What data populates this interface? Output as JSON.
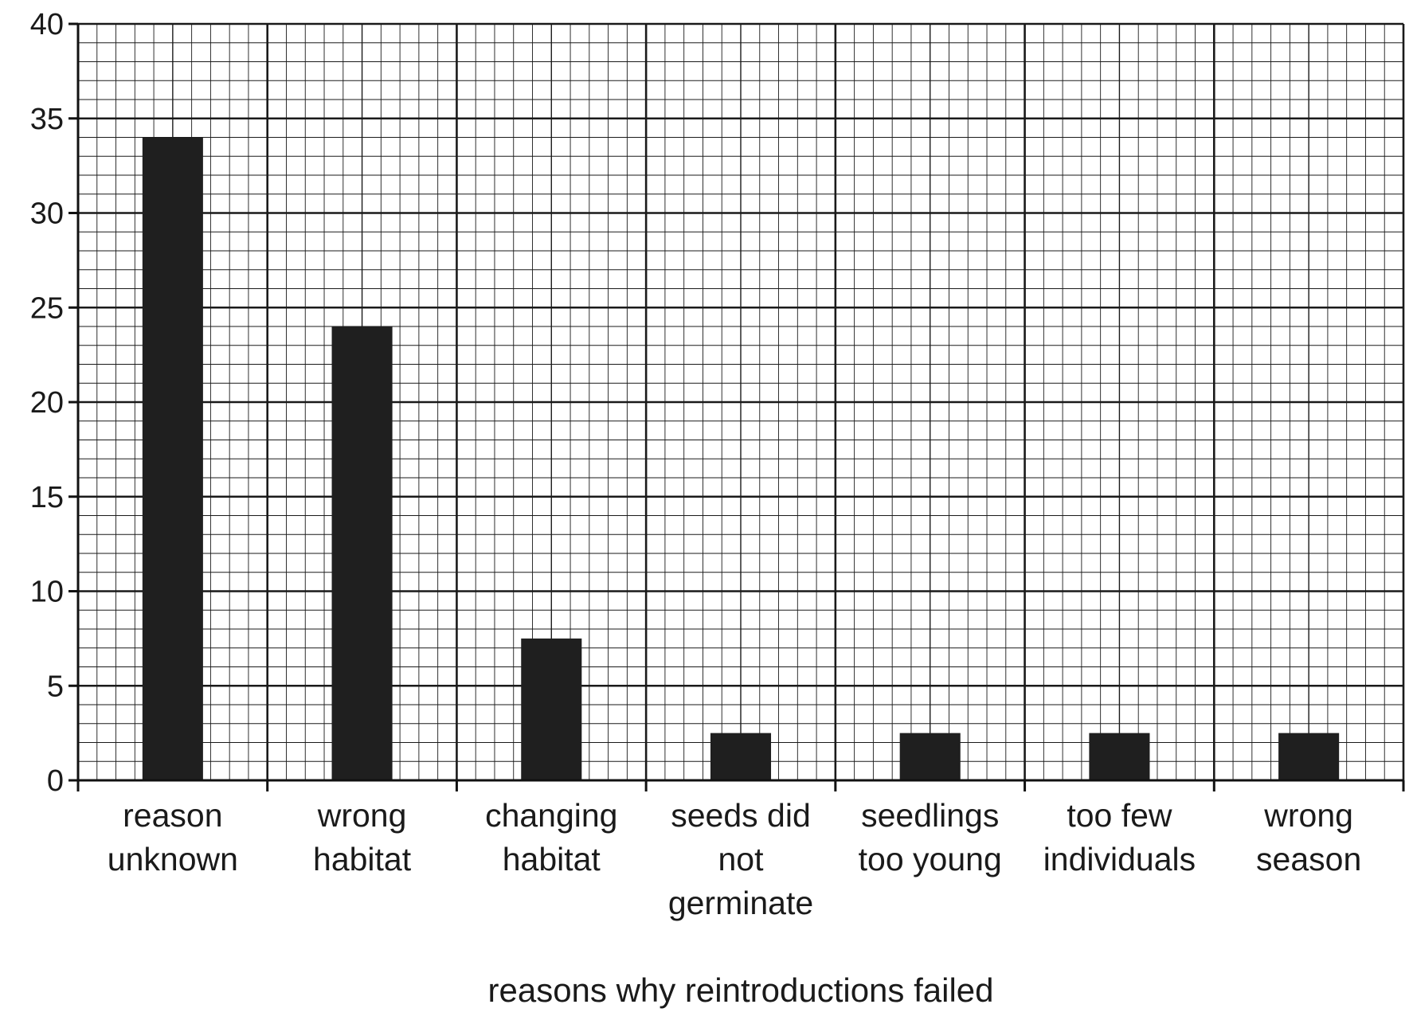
{
  "chart_data": {
    "type": "bar",
    "categories": [
      [
        "reason",
        "unknown"
      ],
      [
        "wrong",
        "habitat"
      ],
      [
        "changing",
        "habitat"
      ],
      [
        "seeds did",
        "not",
        "germinate"
      ],
      [
        "seedlings",
        "too young"
      ],
      [
        "too few",
        "individuals"
      ],
      [
        "wrong",
        "season"
      ]
    ],
    "values": [
      34,
      24,
      7.5,
      2.5,
      2.5,
      2.5,
      2.5
    ],
    "title": "",
    "xlabel": "reasons why reintroductions failed",
    "ylabel": "",
    "ylim": [
      0,
      40
    ],
    "yticks": [
      "0",
      "5",
      "10",
      "15",
      "20",
      "25",
      "30",
      "35",
      "40"
    ],
    "grid": true,
    "bar_color": "#1f1f1f",
    "grid_color": "#1a1a1a"
  }
}
